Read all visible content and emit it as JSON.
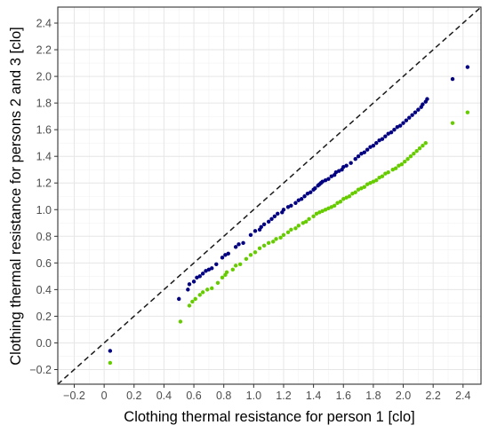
{
  "chart_data": {
    "type": "scatter",
    "title": "",
    "xlabel": "Clothing thermal resistance for person 1 [clo]",
    "ylabel": "Clothing thermal resistance for persons 2 and 3 [clo]",
    "xlim": [
      -0.31,
      2.52
    ],
    "ylim": [
      -0.31,
      2.52
    ],
    "x_ticks": [
      "−0.2",
      "0",
      "0.2",
      "0.4",
      "0.6",
      "0.8",
      "1.0",
      "1.2",
      "1.4",
      "1.6",
      "1.8",
      "2.0",
      "2.2",
      "2.4"
    ],
    "y_ticks": [
      "−0.2",
      "0.0",
      "0.2",
      "0.4",
      "0.6",
      "0.8",
      "1.0",
      "1.2",
      "1.4",
      "1.6",
      "1.8",
      "2.0",
      "2.2",
      "2.4"
    ],
    "grid": true,
    "legend": "none",
    "reference_line": {
      "style": "dashed",
      "color": "#1a1a1a",
      "slope": 1,
      "intercept": 0
    },
    "series": [
      {
        "color": "#000080",
        "points": [
          [
            0.04,
            -0.06
          ],
          [
            0.5,
            0.33
          ],
          [
            0.56,
            0.4
          ],
          [
            0.57,
            0.44
          ],
          [
            0.6,
            0.46
          ],
          [
            0.62,
            0.49
          ],
          [
            0.64,
            0.5
          ],
          [
            0.66,
            0.52
          ],
          [
            0.68,
            0.54
          ],
          [
            0.7,
            0.55
          ],
          [
            0.72,
            0.56
          ],
          [
            0.75,
            0.59
          ],
          [
            0.79,
            0.64
          ],
          [
            0.81,
            0.66
          ],
          [
            0.83,
            0.67
          ],
          [
            0.88,
            0.72
          ],
          [
            0.9,
            0.74
          ],
          [
            0.93,
            0.75
          ],
          [
            0.98,
            0.81
          ],
          [
            1.01,
            0.84
          ],
          [
            1.04,
            0.85
          ],
          [
            1.05,
            0.87
          ],
          [
            1.07,
            0.89
          ],
          [
            1.1,
            0.91
          ],
          [
            1.12,
            0.93
          ],
          [
            1.14,
            0.95
          ],
          [
            1.16,
            0.97
          ],
          [
            1.19,
            0.98
          ],
          [
            1.2,
            1.0
          ],
          [
            1.23,
            1.02
          ],
          [
            1.25,
            1.03
          ],
          [
            1.28,
            1.05
          ],
          [
            1.3,
            1.07
          ],
          [
            1.32,
            1.08
          ],
          [
            1.34,
            1.1
          ],
          [
            1.36,
            1.12
          ],
          [
            1.38,
            1.13
          ],
          [
            1.4,
            1.15
          ],
          [
            1.41,
            1.16
          ],
          [
            1.43,
            1.18
          ],
          [
            1.44,
            1.19
          ],
          [
            1.45,
            1.2
          ],
          [
            1.46,
            1.21
          ],
          [
            1.48,
            1.22
          ],
          [
            1.5,
            1.23
          ],
          [
            1.52,
            1.25
          ],
          [
            1.54,
            1.26
          ],
          [
            1.55,
            1.28
          ],
          [
            1.57,
            1.29
          ],
          [
            1.59,
            1.3
          ],
          [
            1.6,
            1.32
          ],
          [
            1.62,
            1.33
          ],
          [
            1.65,
            1.35
          ],
          [
            1.68,
            1.38
          ],
          [
            1.7,
            1.4
          ],
          [
            1.72,
            1.42
          ],
          [
            1.74,
            1.43
          ],
          [
            1.76,
            1.45
          ],
          [
            1.78,
            1.47
          ],
          [
            1.8,
            1.48
          ],
          [
            1.82,
            1.5
          ],
          [
            1.84,
            1.52
          ],
          [
            1.86,
            1.53
          ],
          [
            1.88,
            1.55
          ],
          [
            1.9,
            1.57
          ],
          [
            1.92,
            1.58
          ],
          [
            1.94,
            1.6
          ],
          [
            1.96,
            1.62
          ],
          [
            1.98,
            1.63
          ],
          [
            2.0,
            1.65
          ],
          [
            2.02,
            1.67
          ],
          [
            2.04,
            1.69
          ],
          [
            2.06,
            1.71
          ],
          [
            2.08,
            1.73
          ],
          [
            2.1,
            1.75
          ],
          [
            2.12,
            1.77
          ],
          [
            2.13,
            1.79
          ],
          [
            2.15,
            1.81
          ],
          [
            2.16,
            1.83
          ],
          [
            2.33,
            1.98
          ],
          [
            2.43,
            2.07
          ]
        ]
      },
      {
        "color": "#66cc00",
        "points": [
          [
            0.04,
            -0.15
          ],
          [
            0.51,
            0.16
          ],
          [
            0.57,
            0.28
          ],
          [
            0.59,
            0.31
          ],
          [
            0.61,
            0.33
          ],
          [
            0.64,
            0.36
          ],
          [
            0.66,
            0.38
          ],
          [
            0.69,
            0.4
          ],
          [
            0.72,
            0.41
          ],
          [
            0.76,
            0.45
          ],
          [
            0.79,
            0.49
          ],
          [
            0.81,
            0.51
          ],
          [
            0.82,
            0.53
          ],
          [
            0.86,
            0.55
          ],
          [
            0.88,
            0.58
          ],
          [
            0.91,
            0.59
          ],
          [
            0.95,
            0.63
          ],
          [
            0.98,
            0.66
          ],
          [
            1.01,
            0.68
          ],
          [
            1.04,
            0.71
          ],
          [
            1.07,
            0.73
          ],
          [
            1.1,
            0.75
          ],
          [
            1.13,
            0.76
          ],
          [
            1.15,
            0.78
          ],
          [
            1.18,
            0.79
          ],
          [
            1.2,
            0.81
          ],
          [
            1.23,
            0.83
          ],
          [
            1.25,
            0.85
          ],
          [
            1.28,
            0.86
          ],
          [
            1.3,
            0.88
          ],
          [
            1.33,
            0.9
          ],
          [
            1.35,
            0.91
          ],
          [
            1.37,
            0.93
          ],
          [
            1.4,
            0.95
          ],
          [
            1.42,
            0.97
          ],
          [
            1.44,
            0.98
          ],
          [
            1.46,
            0.99
          ],
          [
            1.48,
            1.0
          ],
          [
            1.5,
            1.01
          ],
          [
            1.52,
            1.02
          ],
          [
            1.54,
            1.03
          ],
          [
            1.56,
            1.05
          ],
          [
            1.58,
            1.06
          ],
          [
            1.6,
            1.08
          ],
          [
            1.62,
            1.09
          ],
          [
            1.64,
            1.1
          ],
          [
            1.66,
            1.12
          ],
          [
            1.68,
            1.13
          ],
          [
            1.7,
            1.15
          ],
          [
            1.72,
            1.16
          ],
          [
            1.74,
            1.17
          ],
          [
            1.76,
            1.19
          ],
          [
            1.78,
            1.2
          ],
          [
            1.8,
            1.21
          ],
          [
            1.82,
            1.22
          ],
          [
            1.84,
            1.24
          ],
          [
            1.86,
            1.25
          ],
          [
            1.88,
            1.27
          ],
          [
            1.9,
            1.28
          ],
          [
            1.93,
            1.3
          ],
          [
            1.95,
            1.31
          ],
          [
            1.97,
            1.33
          ],
          [
            1.99,
            1.34
          ],
          [
            2.01,
            1.36
          ],
          [
            2.03,
            1.38
          ],
          [
            2.05,
            1.4
          ],
          [
            2.07,
            1.42
          ],
          [
            2.09,
            1.44
          ],
          [
            2.11,
            1.46
          ],
          [
            2.13,
            1.48
          ],
          [
            2.15,
            1.5
          ],
          [
            2.33,
            1.65
          ],
          [
            2.43,
            1.73
          ]
        ]
      }
    ]
  }
}
